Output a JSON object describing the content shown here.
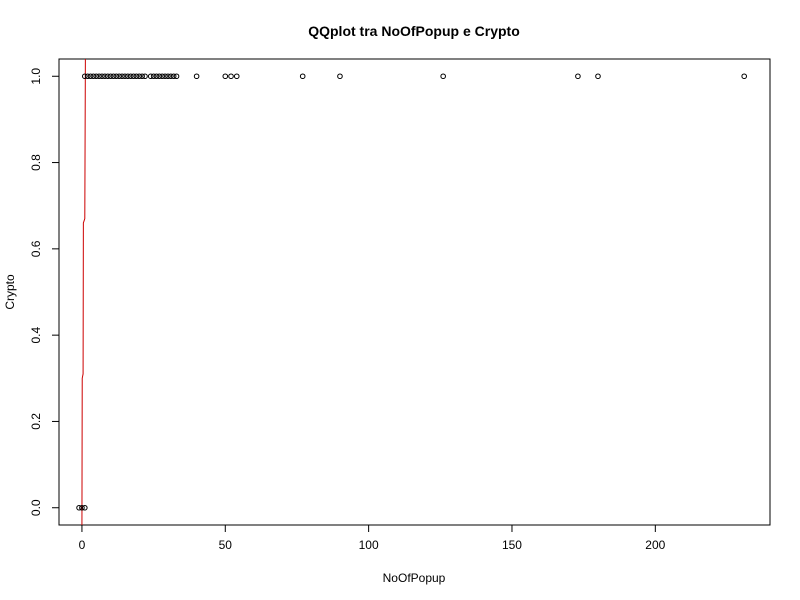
{
  "chart_data": {
    "type": "scatter",
    "title": "QQplot tra NoOfPopup e Crypto",
    "xlabel": "NoOfPopup",
    "ylabel": "Crypto",
    "xlim": [
      -8,
      240
    ],
    "ylim": [
      -0.04,
      1.04
    ],
    "x_ticks": [
      0,
      50,
      100,
      150,
      200
    ],
    "y_ticks": [
      0.0,
      0.2,
      0.4,
      0.6,
      0.8,
      1.0
    ],
    "x_tick_labels": [
      "0",
      "50",
      "100",
      "150",
      "200"
    ],
    "y_tick_labels": [
      "0.0",
      "0.2",
      "0.4",
      "0.6",
      "0.8",
      "1.0"
    ],
    "grid": false,
    "marker": "open-circle",
    "colors": {
      "points": "#000000",
      "reference_line": "#cc0000",
      "axes": "#000000"
    },
    "points": [
      {
        "x": -1,
        "y": 0
      },
      {
        "x": 0,
        "y": 0
      },
      {
        "x": 1,
        "y": 0
      },
      {
        "x": 1,
        "y": 1
      },
      {
        "x": 2,
        "y": 1
      },
      {
        "x": 3,
        "y": 1
      },
      {
        "x": 4,
        "y": 1
      },
      {
        "x": 5,
        "y": 1
      },
      {
        "x": 6,
        "y": 1
      },
      {
        "x": 7,
        "y": 1
      },
      {
        "x": 8,
        "y": 1
      },
      {
        "x": 9,
        "y": 1
      },
      {
        "x": 10,
        "y": 1
      },
      {
        "x": 11,
        "y": 1
      },
      {
        "x": 12,
        "y": 1
      },
      {
        "x": 13,
        "y": 1
      },
      {
        "x": 14,
        "y": 1
      },
      {
        "x": 15,
        "y": 1
      },
      {
        "x": 16,
        "y": 1
      },
      {
        "x": 17,
        "y": 1
      },
      {
        "x": 18,
        "y": 1
      },
      {
        "x": 19,
        "y": 1
      },
      {
        "x": 20,
        "y": 1
      },
      {
        "x": 21,
        "y": 1
      },
      {
        "x": 22,
        "y": 1
      },
      {
        "x": 24,
        "y": 1
      },
      {
        "x": 25,
        "y": 1
      },
      {
        "x": 26,
        "y": 1
      },
      {
        "x": 27,
        "y": 1
      },
      {
        "x": 28,
        "y": 1
      },
      {
        "x": 29,
        "y": 1
      },
      {
        "x": 30,
        "y": 1
      },
      {
        "x": 31,
        "y": 1
      },
      {
        "x": 32,
        "y": 1
      },
      {
        "x": 33,
        "y": 1
      },
      {
        "x": 40,
        "y": 1
      },
      {
        "x": 50,
        "y": 1
      },
      {
        "x": 52,
        "y": 1
      },
      {
        "x": 54,
        "y": 1
      },
      {
        "x": 77,
        "y": 1
      },
      {
        "x": 90,
        "y": 1
      },
      {
        "x": 126,
        "y": 1
      },
      {
        "x": 173,
        "y": 1
      },
      {
        "x": 180,
        "y": 1
      },
      {
        "x": 231,
        "y": 1
      }
    ],
    "reference_line": [
      {
        "x": 0,
        "y": -0.04
      },
      {
        "x": 0.1,
        "y": 0.3
      },
      {
        "x": 0.4,
        "y": 0.31
      },
      {
        "x": 0.5,
        "y": 0.66
      },
      {
        "x": 1,
        "y": 0.67
      },
      {
        "x": 1.2,
        "y": 1.04
      }
    ]
  }
}
